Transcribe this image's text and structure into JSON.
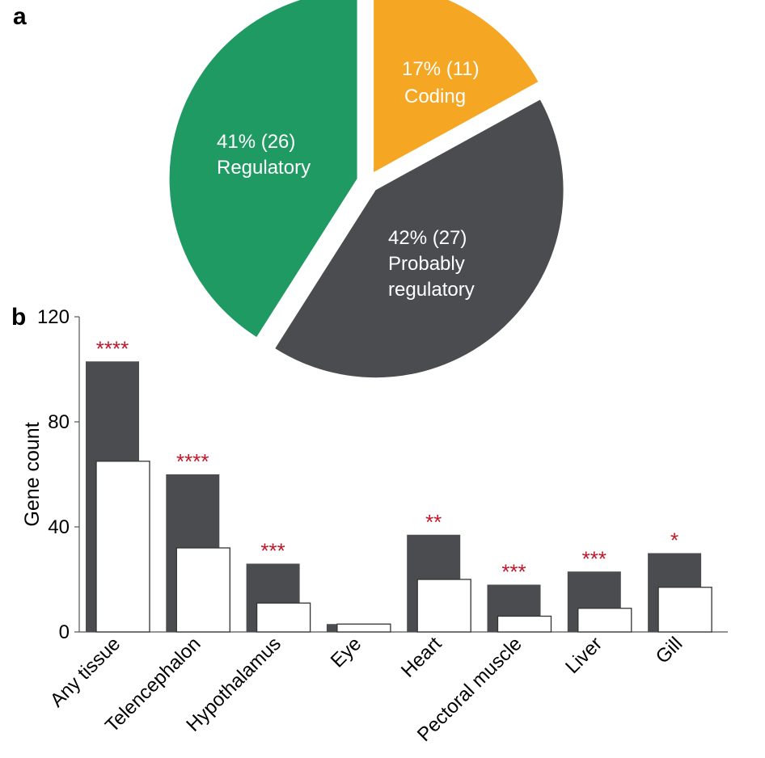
{
  "panel_a_label": "a",
  "panel_b_label": "b",
  "colors": {
    "regulatory": "#1f9a63",
    "coding": "#f5a623",
    "probably_regulatory": "#4a4c4f",
    "bar_dark": "#4a4c4f",
    "bar_light": "#ffffff",
    "significance": "#c0182a"
  },
  "chart_data": [
    {
      "type": "pie",
      "slices": [
        {
          "key": "coding",
          "percent": 17,
          "count": 11,
          "pct_text": "17% (11)",
          "lines": [
            "Coding"
          ]
        },
        {
          "key": "probably_regulatory",
          "percent": 42,
          "count": 27,
          "pct_text": "42% (27)",
          "lines": [
            "Probably",
            "regulatory"
          ]
        },
        {
          "key": "regulatory",
          "percent": 41,
          "count": 26,
          "pct_text": "41% (26)",
          "lines": [
            "Regulatory"
          ]
        }
      ]
    },
    {
      "type": "bar",
      "ylabel": "Gene count",
      "ylim": [
        0,
        120
      ],
      "yticks": [
        0,
        40,
        80,
        120
      ],
      "categories": [
        "Any tissue",
        "Telencephalon",
        "Hypothalamus",
        "Eye",
        "Heart",
        "Pectoral muscle",
        "Liver",
        "Gill"
      ],
      "series": [
        {
          "color_key": "bar_dark",
          "values": [
            103,
            60,
            26,
            3,
            37,
            18,
            23,
            30
          ]
        },
        {
          "color_key": "bar_light",
          "values": [
            65,
            32,
            11,
            3,
            20,
            6,
            9,
            17
          ]
        }
      ],
      "significance": [
        "****",
        "****",
        "***",
        "",
        "**",
        "***",
        "***",
        "*"
      ],
      "grid": false
    }
  ]
}
